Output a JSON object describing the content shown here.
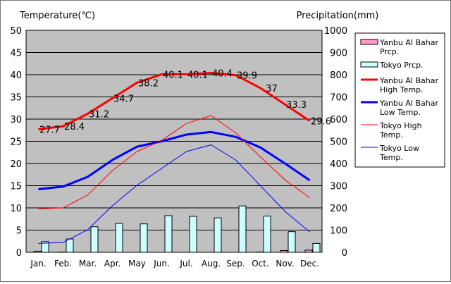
{
  "chart_data": {
    "type": "bar+line",
    "left_axis_title": "Temperature(℃)",
    "right_axis_title": "Precipitation(mm)",
    "categories": [
      "Jan.",
      "Feb.",
      "Mar.",
      "Apr.",
      "May",
      "Jun.",
      "Jul.",
      "Aug.",
      "Sep.",
      "Oct.",
      "Nov.",
      "Dec."
    ],
    "left_axis": {
      "min": 0,
      "max": 50,
      "step": 5,
      "ticks": [
        "0",
        "5",
        "10",
        "15",
        "20",
        "25",
        "30",
        "35",
        "40",
        "45",
        "50"
      ]
    },
    "right_axis": {
      "min": 0,
      "max": 1000,
      "step": 100,
      "ticks": [
        "0",
        "100",
        "200",
        "300",
        "400",
        "500",
        "600",
        "700",
        "800",
        "900",
        "1000"
      ]
    },
    "grid": true,
    "plot_background": "#c0c0c0",
    "legend_position": "right",
    "bar_series": [
      {
        "name": "Yanbu Al Bahar Prcp.",
        "color": "#ff99cc",
        "values": [
          5,
          1,
          0,
          0,
          0,
          0,
          0,
          0,
          0,
          1,
          8,
          10
        ]
      },
      {
        "name": "Tokyo Prcp.",
        "color": "#ccffff",
        "values": [
          48,
          60,
          115,
          130,
          128,
          165,
          162,
          155,
          209,
          163,
          93,
          40
        ]
      }
    ],
    "line_series": [
      {
        "name": "Yanbu Al Bahar High Temp.",
        "color": "#ff0000",
        "width": 3,
        "values": [
          27.7,
          28.4,
          31.2,
          34.7,
          38.2,
          40.1,
          40.1,
          40.4,
          39.9,
          37,
          33.3,
          29.6
        ],
        "labels": [
          "27.7",
          "28.4",
          "31.2",
          "34.7",
          "38.2",
          "40.1",
          "40.1",
          "40.4",
          "39.9",
          "37",
          "33.3",
          "29.6"
        ]
      },
      {
        "name": "Yanbu Al Bahar Low Temp.",
        "color": "#0000ff",
        "width": 3,
        "values": [
          14.2,
          14.8,
          17.0,
          20.8,
          23.8,
          25.0,
          26.5,
          27.1,
          26.0,
          23.6,
          20.0,
          16.2
        ]
      },
      {
        "name": "Tokyo High Temp.",
        "color": "#ff0000",
        "width": 1,
        "values": [
          9.8,
          10.0,
          12.9,
          18.4,
          22.7,
          25.2,
          29.0,
          30.8,
          26.9,
          21.5,
          16.3,
          12.3
        ]
      },
      {
        "name": "Tokyo Low Temp.",
        "color": "#0000ff",
        "width": 1,
        "values": [
          2.0,
          2.2,
          5.1,
          10.5,
          15.1,
          18.9,
          22.7,
          24.2,
          20.8,
          15.0,
          9.2,
          4.6
        ]
      }
    ],
    "legend": [
      {
        "name": "Yanbu Al Bahar Prcp.",
        "line1": "Yanbu Al Bahar",
        "line2": "Prcp.",
        "kind": "box",
        "color": "#ff99cc"
      },
      {
        "name": "Tokyo Prcp.",
        "line1": "Tokyo Prcp.",
        "line2": "",
        "kind": "box",
        "color": "#ccffff"
      },
      {
        "name": "Yanbu Al Bahar High Temp.",
        "line1": "Yanbu Al Bahar",
        "line2": "High Temp.",
        "kind": "line",
        "color": "#ff0000",
        "width": 3
      },
      {
        "name": "Yanbu Al Bahar Low Temp.",
        "line1": "Yanbu Al Bahar",
        "line2": "Low Temp.",
        "kind": "line",
        "color": "#0000ff",
        "width": 3
      },
      {
        "name": "Tokyo High Temp.",
        "line1": "Tokyo High",
        "line2": "Temp.",
        "kind": "line",
        "color": "#ff0000",
        "width": 1
      },
      {
        "name": "Tokyo Low Temp.",
        "line1": "Tokyo Low",
        "line2": "Temp.",
        "kind": "line",
        "color": "#0000ff",
        "width": 1
      }
    ]
  }
}
